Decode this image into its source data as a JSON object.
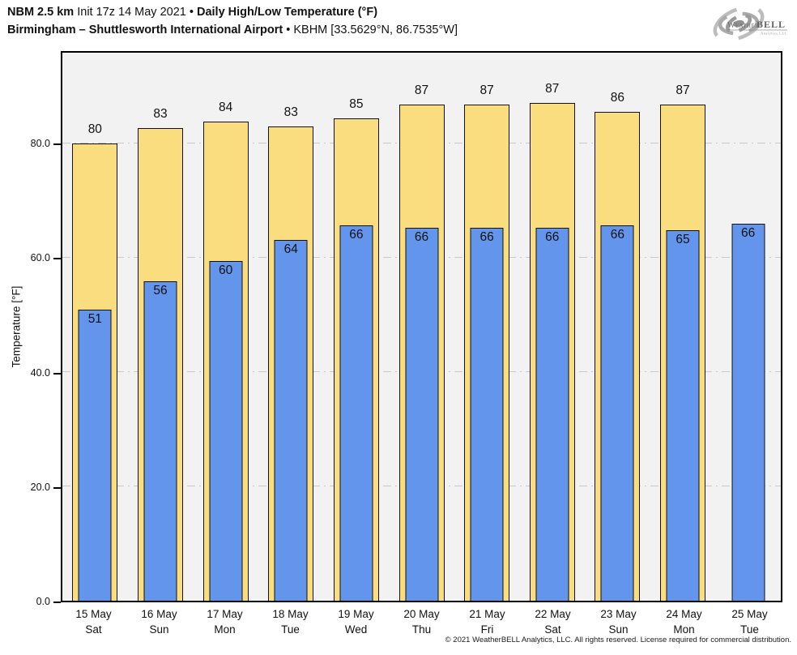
{
  "header": {
    "line1_bold1": "NBM 2.5 km",
    "line1_normal": " Init 17z 14 May 2021 • ",
    "line1_bold2": "Daily High/Low Temperature (°F)",
    "line2_bold": "Birmingham – Shuttlesworth International Airport",
    "line2_normal": " • KBHM [33.5629°N, 86.7535°W]"
  },
  "logo": {
    "icon": "hurricane-swirl-icon",
    "text_weather": "Weather",
    "text_bell": "BELL",
    "text_sub": "Analytics LLC"
  },
  "footer": {
    "copyright": "© 2021 WeatherBELL Analytics, LLC. All rights reserved. License required for commercial distribution."
  },
  "chart_data": {
    "type": "bar",
    "title": "NBM 2.5 km Init 17z 14 May 2021 • Daily High/Low Temperature (°F)",
    "subtitle": "Birmingham – Shuttlesworth International Airport • KBHM [33.5629°N, 86.7535°W]",
    "xlabel": "",
    "ylabel": "Temperature [°F]",
    "ylim": [
      0,
      96.3
    ],
    "yticks": [
      0,
      20,
      40,
      60,
      80
    ],
    "ytick_labels": [
      "0.0",
      "20.0",
      "40.0",
      "60.0",
      "80.0"
    ],
    "grid": "horizontal dash-dot",
    "legend_position": "none",
    "plot_background": "#F2F2F2",
    "categories": [
      "15 May",
      "16 May",
      "17 May",
      "18 May",
      "19 May",
      "20 May",
      "21 May",
      "22 May",
      "23 May",
      "24 May",
      "25 May"
    ],
    "days_of_week": [
      "Sat",
      "Sun",
      "Mon",
      "Tue",
      "Wed",
      "Thu",
      "Fri",
      "Sat",
      "Sun",
      "Mon",
      "Tue"
    ],
    "series": [
      {
        "name": "Daily High",
        "color": "#FADD7E",
        "values": [
          80,
          83,
          84,
          83,
          85,
          87,
          87,
          87,
          86,
          87,
          null
        ]
      },
      {
        "name": "Daily Low",
        "color": "#6495ED",
        "values": [
          51,
          56,
          60,
          64,
          66,
          66,
          66,
          66,
          66,
          65,
          66
        ]
      }
    ],
    "bar_top_plotted_estimates": {
      "high": [
        80.4,
        83.1,
        84.2,
        83.4,
        84.8,
        87.2,
        87.2,
        87.5,
        85.9,
        87.2,
        null
      ],
      "low": [
        51.1,
        56.1,
        59.7,
        63.4,
        66.0,
        65.6,
        65.6,
        65.6,
        66.0,
        65.1,
        66.3
      ]
    }
  }
}
